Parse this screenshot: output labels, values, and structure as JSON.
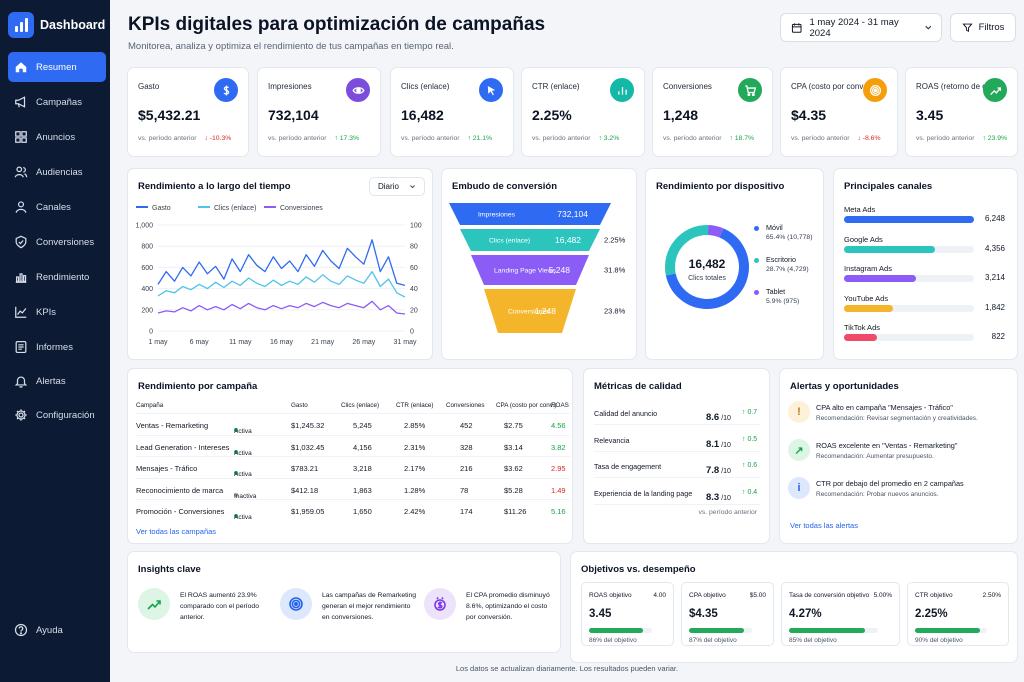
{
  "sidebar": {
    "title": "Dashboard",
    "items": [
      {
        "label": "Resumen",
        "icon": "home-icon"
      },
      {
        "label": "Campañas",
        "icon": "megaphone-icon"
      },
      {
        "label": "Anuncios",
        "icon": "grid-icon"
      },
      {
        "label": "Audiencias",
        "icon": "users-icon"
      },
      {
        "label": "Canales",
        "icon": "people-icon"
      },
      {
        "label": "Conversiones",
        "icon": "check-circle-icon"
      },
      {
        "label": "Rendimiento",
        "icon": "bar-chart-icon"
      },
      {
        "label": "KPIs",
        "icon": "trend-icon"
      },
      {
        "label": "Informes",
        "icon": "list-icon"
      },
      {
        "label": "Alertas",
        "icon": "bell-icon"
      },
      {
        "label": "Configuración",
        "icon": "gear-icon"
      }
    ],
    "help": "Ayuda"
  },
  "header": {
    "title": "KPIs digitales para optimización de campañas",
    "subtitle": "Monitorea, analiza y optimiza el rendimiento de tus campañas en tiempo real.",
    "date_range": "1 may 2024 - 31 may 2024",
    "filters": "Filtros"
  },
  "kpis": [
    {
      "label": "Gasto",
      "value": "$5,432.21",
      "cmp": "vs. período anterior",
      "delta": "↓ -10.3%",
      "dir": "down",
      "color": "#2f6bf2",
      "icon": "dollar-icon"
    },
    {
      "label": "Impresiones",
      "value": "732,104",
      "cmp": "vs. período anterior",
      "delta": "↑ 17.3%",
      "dir": "up",
      "color": "#7c4ddb",
      "icon": "eye-icon"
    },
    {
      "label": "Clics (enlace)",
      "value": "16,482",
      "cmp": "vs. período anterior",
      "delta": "↑ 21.1%",
      "dir": "up",
      "color": "#2f6bf2",
      "icon": "cursor-icon"
    },
    {
      "label": "CTR (enlace)",
      "value": "2.25%",
      "cmp": "vs. período anterior",
      "delta": "↑ 3.2%",
      "dir": "up",
      "color": "#14b8a6",
      "icon": "bar-chart-icon"
    },
    {
      "label": "Conversiones",
      "value": "1,248",
      "cmp": "vs. período anterior",
      "delta": "↑ 18.7%",
      "dir": "up",
      "color": "#22a95a",
      "icon": "cart-icon"
    },
    {
      "label": "CPA (costo por conv.)",
      "value": "$4.35",
      "cmp": "vs. período anterior",
      "delta": "↓ -8.6%",
      "dir": "down",
      "color": "#f59e0b",
      "icon": "target-icon"
    },
    {
      "label": "ROAS (retorno de gasto)",
      "value": "3.45",
      "cmp": "vs. período anterior",
      "delta": "↑ 23.9%",
      "dir": "up",
      "color": "#22a95a",
      "icon": "growth-icon"
    }
  ],
  "time_chart": {
    "title": "Rendimiento a lo largo del tiempo",
    "period": "Diario",
    "legend": [
      "Gasto",
      "Clics (enlace)",
      "Conversiones"
    ],
    "colors": [
      "#2f6bf2",
      "#4fc3e8",
      "#8b5cf6"
    ],
    "y_left": [
      "1,000",
      "800",
      "600",
      "400",
      "200",
      "0"
    ],
    "y_right": [
      "100",
      "80",
      "60",
      "40",
      "20",
      "0"
    ],
    "x_labels": [
      "1 may",
      "6 may",
      "11 may",
      "16 may",
      "21 may",
      "26 may",
      "31 may"
    ]
  },
  "chart_data": {
    "type": "line",
    "x": [
      1,
      2,
      3,
      4,
      5,
      6,
      7,
      8,
      9,
      10,
      11,
      12,
      13,
      14,
      15,
      16,
      17,
      18,
      19,
      20,
      21,
      22,
      23,
      24,
      25,
      26,
      27,
      28,
      29,
      30,
      31
    ],
    "ylim": [
      0,
      1000
    ],
    "y2lim": [
      0,
      100
    ],
    "series": [
      {
        "name": "Gasto",
        "values": [
          440,
          560,
          470,
          600,
          520,
          650,
          540,
          610,
          490,
          680,
          560,
          720,
          620,
          560,
          700,
          590,
          660,
          560,
          720,
          610,
          760,
          660,
          590,
          780,
          700,
          630,
          860,
          560,
          700,
          450,
          430
        ]
      },
      {
        "name": "Clics (enlace)",
        "values": [
          330,
          380,
          360,
          420,
          390,
          440,
          400,
          460,
          410,
          470,
          430,
          500,
          450,
          420,
          480,
          430,
          470,
          440,
          510,
          460,
          530,
          470,
          440,
          520,
          480,
          450,
          560,
          420,
          490,
          360,
          320
        ]
      },
      {
        "name": "Conversiones",
        "values": [
          170,
          190,
          180,
          220,
          190,
          240,
          200,
          230,
          200,
          250,
          210,
          260,
          220,
          200,
          240,
          210,
          240,
          220,
          260,
          230,
          270,
          240,
          220,
          260,
          240,
          220,
          280,
          200,
          240,
          170,
          160
        ]
      }
    ]
  },
  "funnel": {
    "title": "Embudo de conversión",
    "stages": [
      {
        "label": "Impresiones",
        "value": "732,104",
        "pct": "",
        "color": "#2f6bf2"
      },
      {
        "label": "Clics (enlace)",
        "value": "16,482",
        "pct": "2.25%",
        "color": "#2cc5bd"
      },
      {
        "label": "Landing Page Views",
        "value": "5,248",
        "pct": "31.8%",
        "color": "#8b5cf6"
      },
      {
        "label": "Conversiones",
        "value": "1,248",
        "pct": "23.8%",
        "color": "#f5b52a"
      }
    ]
  },
  "device": {
    "title": "Rendimiento por dispositivo",
    "total": "16,482",
    "total_label": "Clics totales",
    "items": [
      {
        "label": "Móvil",
        "detail": "65.4% (10,778)",
        "share": 0.654,
        "color": "#2f6bf2"
      },
      {
        "label": "Escritorio",
        "detail": "28.7% (4,729)",
        "share": 0.287,
        "color": "#2cc5bd"
      },
      {
        "label": "Tablet",
        "detail": "5.9% (975)",
        "share": 0.059,
        "color": "#8b5cf6"
      }
    ]
  },
  "channels": {
    "title": "Principales canales",
    "items": [
      {
        "label": "Meta Ads",
        "value": "6,248",
        "share": 1.0,
        "color": "#2f6bf2"
      },
      {
        "label": "Google Ads",
        "value": "4,356",
        "share": 0.7,
        "color": "#2cc5bd"
      },
      {
        "label": "Instagram Ads",
        "value": "3,214",
        "share": 0.55,
        "color": "#8b5cf6"
      },
      {
        "label": "YouTube Ads",
        "value": "1,842",
        "share": 0.38,
        "color": "#f5b52a"
      },
      {
        "label": "TikTok Ads",
        "value": "822",
        "share": 0.25,
        "color": "#ef4a6a"
      }
    ]
  },
  "campaigns": {
    "title": "Rendimiento por campaña",
    "headers": [
      "Campaña",
      "Gasto",
      "Clics (enlace)",
      "CTR (enlace)",
      "Conversiones",
      "CPA (costo por conv.)",
      "ROAS"
    ],
    "rows": [
      {
        "name": "Ventas - Remarketing",
        "status": "Activa",
        "active": true,
        "spend": "$1,245.32",
        "clicks": "5,245",
        "ctr": "2.85%",
        "conv": "452",
        "cpa": "$2.75",
        "roas": "4.56",
        "good": true
      },
      {
        "name": "Lead Generation - Intereses",
        "status": "Activa",
        "active": true,
        "spend": "$1,032.45",
        "clicks": "4,156",
        "ctr": "2.31%",
        "conv": "328",
        "cpa": "$3.14",
        "roas": "3.82",
        "good": true
      },
      {
        "name": "Mensajes - Tráfico",
        "status": "Activa",
        "active": true,
        "spend": "$783.21",
        "clicks": "3,218",
        "ctr": "2.17%",
        "conv": "216",
        "cpa": "$3.62",
        "roas": "2.95",
        "good": false
      },
      {
        "name": "Reconocimiento de marca",
        "status": "Inactiva",
        "active": false,
        "spend": "$412.18",
        "clicks": "1,863",
        "ctr": "1.28%",
        "conv": "78",
        "cpa": "$5.28",
        "roas": "1.49",
        "good": false
      },
      {
        "name": "Promoción - Conversiones",
        "status": "Activa",
        "active": true,
        "spend": "$1,959.05",
        "clicks": "1,650",
        "ctr": "2.42%",
        "conv": "174",
        "cpa": "$11.26",
        "roas": "5.16",
        "good": true
      }
    ],
    "link": "Ver todas las campañas"
  },
  "quality": {
    "title": "Métricas de calidad",
    "items": [
      {
        "label": "Calidad del anuncio",
        "score": "8.6",
        "max": "/10",
        "delta": "↑ 0.7"
      },
      {
        "label": "Relevancia",
        "score": "8.1",
        "max": "/10",
        "delta": "↑ 0.5"
      },
      {
        "label": "Tasa de engagement",
        "score": "7.8",
        "max": "/10",
        "delta": "↑ 0.6"
      },
      {
        "label": "Experiencia de la landing page",
        "score": "8.3",
        "max": "/10",
        "delta": "↑ 0.4"
      }
    ],
    "footer": "vs. período anterior"
  },
  "alerts": {
    "title": "Alertas y oportunidades",
    "items": [
      {
        "title": "CPA alto en campaña \"Mensajes - Tráfico\"",
        "rec": "Recomendación: Revisar segmentación y creatividades.",
        "bg": "#fdf1d8",
        "fg": "#b7791f",
        "glyph": "!",
        "icon": "warning-icon"
      },
      {
        "title": "ROAS excelente en \"Ventas - Remarketing\"",
        "rec": "Recomendación: Aumentar presupuesto.",
        "bg": "#dcf5e4",
        "fg": "#16a34a",
        "glyph": "↗",
        "icon": "trend-up-icon"
      },
      {
        "title": "CTR por debajo del promedio en 2 campañas",
        "rec": "Recomendación: Probar nuevos anuncios.",
        "bg": "#dde8fd",
        "fg": "#2563eb",
        "glyph": "i",
        "icon": "info-icon"
      }
    ],
    "link": "Ver todas las alertas"
  },
  "insights": {
    "title": "Insights clave",
    "items": [
      {
        "lines": [
          "El ROAS aumentó 23.9%",
          "comparado con el período",
          "anterior."
        ],
        "bg": "#dcf5e4",
        "fg": "#16a34a",
        "icon": "growth-icon"
      },
      {
        "lines": [
          "Las campañas de Remarketing",
          "generan el mejor rendimiento",
          "en conversiones."
        ],
        "bg": "#dde8fd",
        "fg": "#2563eb",
        "icon": "target-icon"
      },
      {
        "lines": [
          "El CPA promedio disminuyó",
          "8.6%, optimizando el costo",
          "por conversión."
        ],
        "bg": "#ece3fb",
        "fg": "#7c3aed",
        "icon": "money-icon"
      }
    ]
  },
  "goals": {
    "title": "Objetivos vs. desempeño",
    "items": [
      {
        "label": "ROAS objetivo",
        "target": "4.00",
        "value": "3.45",
        "pct": "86% del objetivo",
        "share": 0.86
      },
      {
        "label": "CPA objetivo",
        "target": "$5.00",
        "value": "$4.35",
        "pct": "87% del objetivo",
        "share": 0.87
      },
      {
        "label": "Tasa de conversión objetivo",
        "target": "5.00%",
        "value": "4.27%",
        "pct": "85% del objetivo",
        "share": 0.85
      },
      {
        "label": "CTR objetivo",
        "target": "2.50%",
        "value": "2.25%",
        "pct": "90% del objetivo",
        "share": 0.9
      }
    ]
  },
  "footer": "Los datos se actualizan diariamente. Los resultados pueden variar."
}
